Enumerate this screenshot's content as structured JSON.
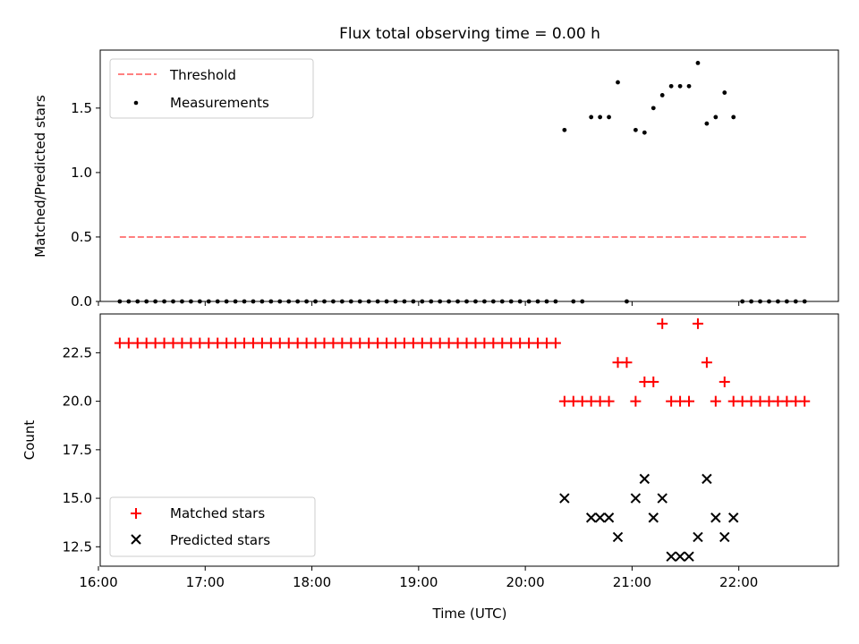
{
  "chart_data": [
    {
      "type": "scatter",
      "title": "Flux total observing time = 0.00 h",
      "xlabel": "",
      "ylabel": "Matched/Predicted stars",
      "xlim": [
        "16:01",
        "22:56"
      ],
      "ylim": [
        0,
        1.95
      ],
      "yticks": [
        "0.0",
        "0.5",
        "1.0",
        "1.5"
      ],
      "ytick_values": [
        0,
        0.5,
        1.0,
        1.5
      ],
      "grid": false,
      "legend_position": "upper left",
      "series": [
        {
          "name": "Threshold",
          "kind": "dashed-line",
          "color": "#ff7f7f",
          "points": [
            [
              "16:12",
              0.5
            ],
            [
              "22:38",
              0.5
            ]
          ]
        },
        {
          "name": "Measurements",
          "kind": "dot",
          "color": "#000000",
          "points": [
            [
              "16:12",
              0
            ],
            [
              "16:17",
              0
            ],
            [
              "16:22",
              0
            ],
            [
              "16:27",
              0
            ],
            [
              "16:32",
              0
            ],
            [
              "16:37",
              0
            ],
            [
              "16:42",
              0
            ],
            [
              "16:47",
              0
            ],
            [
              "16:52",
              0
            ],
            [
              "16:57",
              0
            ],
            [
              "17:02",
              0
            ],
            [
              "17:07",
              0
            ],
            [
              "17:12",
              0
            ],
            [
              "17:17",
              0
            ],
            [
              "17:22",
              0
            ],
            [
              "17:27",
              0
            ],
            [
              "17:32",
              0
            ],
            [
              "17:37",
              0
            ],
            [
              "17:42",
              0
            ],
            [
              "17:47",
              0
            ],
            [
              "17:52",
              0
            ],
            [
              "17:57",
              0
            ],
            [
              "18:02",
              0
            ],
            [
              "18:07",
              0
            ],
            [
              "18:12",
              0
            ],
            [
              "18:17",
              0
            ],
            [
              "18:22",
              0
            ],
            [
              "18:27",
              0
            ],
            [
              "18:32",
              0
            ],
            [
              "18:37",
              0
            ],
            [
              "18:42",
              0
            ],
            [
              "18:47",
              0
            ],
            [
              "18:52",
              0
            ],
            [
              "18:57",
              0
            ],
            [
              "19:02",
              0
            ],
            [
              "19:07",
              0
            ],
            [
              "19:12",
              0
            ],
            [
              "19:17",
              0
            ],
            [
              "19:22",
              0
            ],
            [
              "19:27",
              0
            ],
            [
              "19:32",
              0
            ],
            [
              "19:37",
              0
            ],
            [
              "19:42",
              0
            ],
            [
              "19:47",
              0
            ],
            [
              "19:52",
              0
            ],
            [
              "19:57",
              0
            ],
            [
              "20:02",
              0
            ],
            [
              "20:07",
              0
            ],
            [
              "20:12",
              0
            ],
            [
              "20:17",
              0
            ],
            [
              "20:22",
              1.33
            ],
            [
              "20:27",
              0
            ],
            [
              "20:32",
              0
            ],
            [
              "20:37",
              1.43
            ],
            [
              "20:42",
              1.43
            ],
            [
              "20:47",
              1.43
            ],
            [
              "20:52",
              1.7
            ],
            [
              "20:57",
              0
            ],
            [
              "21:02",
              1.33
            ],
            [
              "21:07",
              1.31
            ],
            [
              "21:12",
              1.5
            ],
            [
              "21:17",
              1.6
            ],
            [
              "21:22",
              1.67
            ],
            [
              "21:27",
              1.67
            ],
            [
              "21:32",
              1.67
            ],
            [
              "21:37",
              1.85
            ],
            [
              "21:42",
              1.38
            ],
            [
              "21:47",
              1.43
            ],
            [
              "21:52",
              1.62
            ],
            [
              "21:57",
              1.43
            ],
            [
              "22:02",
              0
            ],
            [
              "22:07",
              0
            ],
            [
              "22:12",
              0
            ],
            [
              "22:17",
              0
            ],
            [
              "22:22",
              0
            ],
            [
              "22:27",
              0
            ],
            [
              "22:32",
              0
            ],
            [
              "22:37",
              0
            ]
          ]
        }
      ]
    },
    {
      "type": "scatter",
      "title": "",
      "xlabel": "Time (UTC)",
      "ylabel": "Count",
      "xlim": [
        "16:01",
        "22:56"
      ],
      "ylim": [
        11.5,
        24.5
      ],
      "xticks": [
        "16:00",
        "17:00",
        "18:00",
        "19:00",
        "20:00",
        "21:00",
        "22:00"
      ],
      "yticks": [
        "12.5",
        "15.0",
        "17.5",
        "20.0",
        "22.5"
      ],
      "ytick_values": [
        12.5,
        15.0,
        17.5,
        20.0,
        22.5
      ],
      "grid": false,
      "legend_position": "lower left",
      "series": [
        {
          "name": "Matched stars",
          "kind": "plus",
          "color": "#ff0000",
          "points": [
            [
              "16:12",
              23
            ],
            [
              "16:17",
              23
            ],
            [
              "16:22",
              23
            ],
            [
              "16:27",
              23
            ],
            [
              "16:32",
              23
            ],
            [
              "16:37",
              23
            ],
            [
              "16:42",
              23
            ],
            [
              "16:47",
              23
            ],
            [
              "16:52",
              23
            ],
            [
              "16:57",
              23
            ],
            [
              "17:02",
              23
            ],
            [
              "17:07",
              23
            ],
            [
              "17:12",
              23
            ],
            [
              "17:17",
              23
            ],
            [
              "17:22",
              23
            ],
            [
              "17:27",
              23
            ],
            [
              "17:32",
              23
            ],
            [
              "17:37",
              23
            ],
            [
              "17:42",
              23
            ],
            [
              "17:47",
              23
            ],
            [
              "17:52",
              23
            ],
            [
              "17:57",
              23
            ],
            [
              "18:02",
              23
            ],
            [
              "18:07",
              23
            ],
            [
              "18:12",
              23
            ],
            [
              "18:17",
              23
            ],
            [
              "18:22",
              23
            ],
            [
              "18:27",
              23
            ],
            [
              "18:32",
              23
            ],
            [
              "18:37",
              23
            ],
            [
              "18:42",
              23
            ],
            [
              "18:47",
              23
            ],
            [
              "18:52",
              23
            ],
            [
              "18:57",
              23
            ],
            [
              "19:02",
              23
            ],
            [
              "19:07",
              23
            ],
            [
              "19:12",
              23
            ],
            [
              "19:17",
              23
            ],
            [
              "19:22",
              23
            ],
            [
              "19:27",
              23
            ],
            [
              "19:32",
              23
            ],
            [
              "19:37",
              23
            ],
            [
              "19:42",
              23
            ],
            [
              "19:47",
              23
            ],
            [
              "19:52",
              23
            ],
            [
              "19:57",
              23
            ],
            [
              "20:02",
              23
            ],
            [
              "20:07",
              23
            ],
            [
              "20:12",
              23
            ],
            [
              "20:17",
              23
            ],
            [
              "20:22",
              20
            ],
            [
              "20:27",
              20
            ],
            [
              "20:32",
              20
            ],
            [
              "20:37",
              20
            ],
            [
              "20:42",
              20
            ],
            [
              "20:47",
              20
            ],
            [
              "20:52",
              22
            ],
            [
              "20:57",
              22
            ],
            [
              "21:02",
              20
            ],
            [
              "21:07",
              21
            ],
            [
              "21:12",
              21
            ],
            [
              "21:17",
              24
            ],
            [
              "21:22",
              20
            ],
            [
              "21:27",
              20
            ],
            [
              "21:32",
              20
            ],
            [
              "21:37",
              24
            ],
            [
              "21:42",
              22
            ],
            [
              "21:47",
              20
            ],
            [
              "21:52",
              21
            ],
            [
              "21:57",
              20
            ],
            [
              "22:02",
              20
            ],
            [
              "22:07",
              20
            ],
            [
              "22:12",
              20
            ],
            [
              "22:17",
              20
            ],
            [
              "22:22",
              20
            ],
            [
              "22:27",
              20
            ],
            [
              "22:32",
              20
            ],
            [
              "22:37",
              20
            ]
          ]
        },
        {
          "name": "Predicted stars",
          "kind": "cross",
          "color": "#000000",
          "points": [
            [
              "20:22",
              15
            ],
            [
              "20:37",
              14
            ],
            [
              "20:42",
              14
            ],
            [
              "20:47",
              14
            ],
            [
              "20:52",
              13
            ],
            [
              "21:02",
              15
            ],
            [
              "21:07",
              16
            ],
            [
              "21:12",
              14
            ],
            [
              "21:17",
              15
            ],
            [
              "21:22",
              12
            ],
            [
              "21:27",
              12
            ],
            [
              "21:32",
              12
            ],
            [
              "21:37",
              13
            ],
            [
              "21:42",
              16
            ],
            [
              "21:47",
              14
            ],
            [
              "21:52",
              13
            ],
            [
              "21:57",
              14
            ]
          ]
        }
      ]
    }
  ]
}
